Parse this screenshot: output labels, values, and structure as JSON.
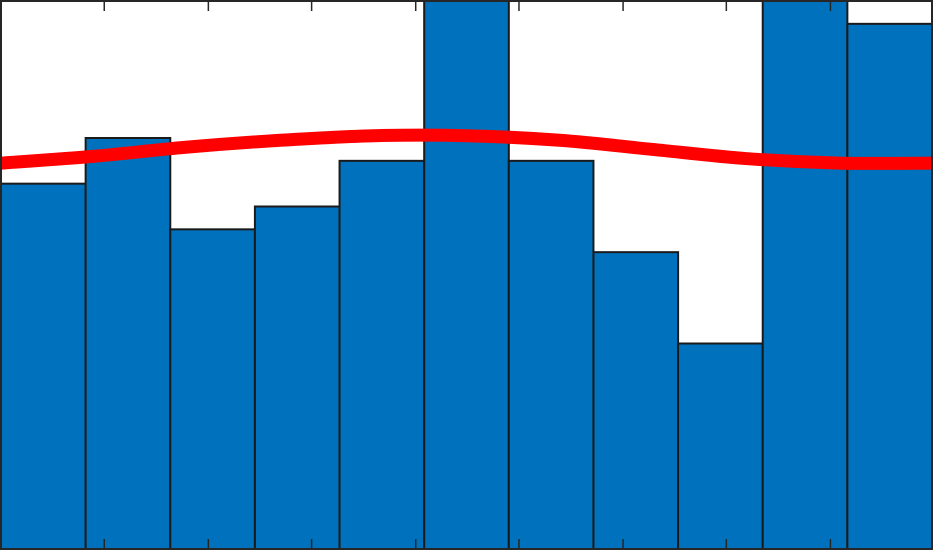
{
  "chart_data": {
    "type": "bar",
    "values": [
      16,
      18,
      14,
      15,
      17,
      24,
      17,
      13,
      9,
      24,
      23
    ],
    "ylim": [
      0,
      24
    ],
    "xlim": [
      0,
      11
    ],
    "bar_color": "#0072bd",
    "bar_edge_color": "#1a1a1a",
    "fit_curve": {
      "type": "line",
      "color": "#ff0000",
      "x": [
        0,
        1.1,
        2.2,
        3.3,
        4.4,
        5.5,
        6.6,
        7.7,
        8.8,
        9.9,
        11
      ],
      "y": [
        16.9,
        17.2,
        17.6,
        17.9,
        18.1,
        18.1,
        17.9,
        17.5,
        17.1,
        16.9,
        16.9
      ]
    },
    "x_ticks": [
      1.22,
      2.45,
      3.67,
      4.9,
      6.12,
      7.35,
      8.57,
      9.8
    ],
    "grid": false,
    "legend": "none"
  }
}
